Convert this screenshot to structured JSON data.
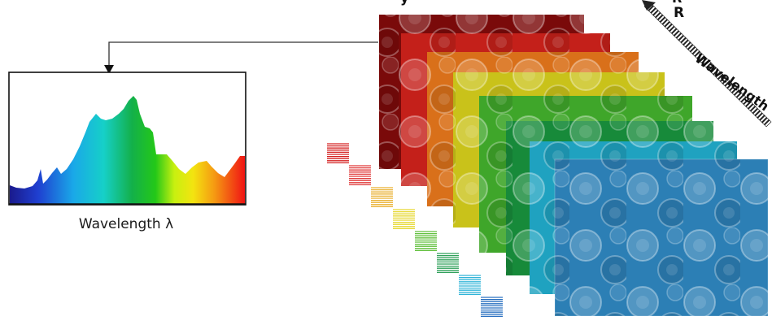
{
  "spectrum": {
    "caption": "Wavelength λ"
  },
  "axis": {
    "label": "Wavelength",
    "band_letter": "R",
    "clipped_top_left": "y",
    "clipped_top_right": "R"
  },
  "colors": {
    "layers": [
      "#7a0a0a",
      "#c4201a",
      "#d9701a",
      "#c9c21a",
      "#3fa62a",
      "#178a3a",
      "#1fa2c0",
      "#2c7fb5"
    ],
    "line_strips": [
      "#d42020",
      "#e03a3a",
      "#e9b030",
      "#e6d830",
      "#5fbf3a",
      "#2fa05a",
      "#30b4d8",
      "#2a70c0"
    ]
  }
}
